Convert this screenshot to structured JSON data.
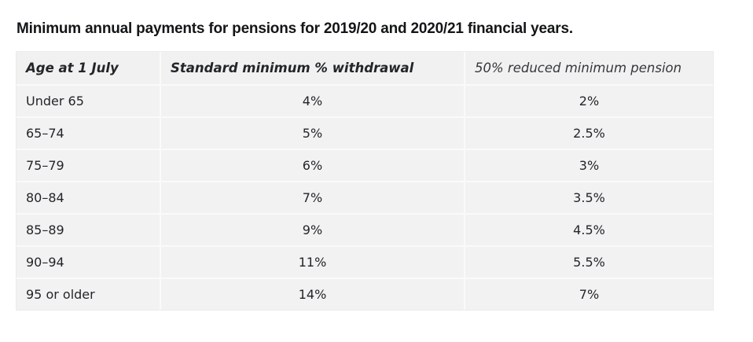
{
  "title": "Minimum annual payments for pensions for 2019/20 and 2020/21 financial years.",
  "table": {
    "headers": {
      "age": "Age at 1 July",
      "standard": "Standard minimum % withdrawal",
      "reduced": "50% reduced minimum pension"
    },
    "rows": [
      {
        "age": "Under 65",
        "standard": "4%",
        "reduced": "2%"
      },
      {
        "age": "65–74",
        "standard": "5%",
        "reduced": "2.5%"
      },
      {
        "age": "75–79",
        "standard": "6%",
        "reduced": "3%"
      },
      {
        "age": "80–84",
        "standard": "7%",
        "reduced": "3.5%"
      },
      {
        "age": "85–89",
        "standard": "9%",
        "reduced": "4.5%"
      },
      {
        "age": "90–94",
        "standard": "11%",
        "reduced": "5.5%"
      },
      {
        "age": "95 or older",
        "standard": "14%",
        "reduced": "7%"
      }
    ],
    "colors": {
      "cell_background": "#f2f2f3",
      "header_background": "#f1f1f2",
      "separator_line": "#fafafb",
      "outer_border": "#ebebed",
      "text": "#232528"
    }
  }
}
